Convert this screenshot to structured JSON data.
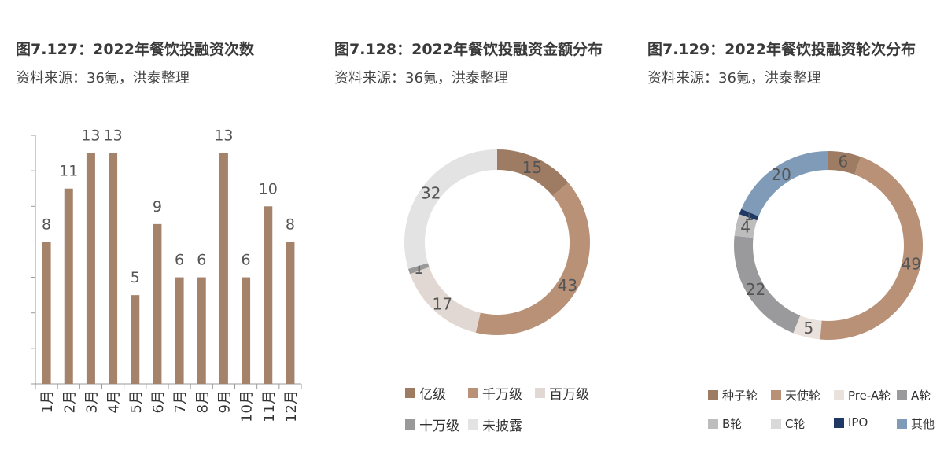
{
  "panels": [
    {
      "title": "图7.127：2022年餐饮投融资次数",
      "source": "资料来源：36氪，洪泰整理"
    },
    {
      "title": "图7.128：2022年餐饮投融资金额分布",
      "source": "资料来源：36氪，洪泰整理"
    },
    {
      "title": "图7.129：2022年餐饮投融资轮次分布",
      "source": "资料来源：36氪，洪泰整理"
    }
  ],
  "chart_data": [
    {
      "type": "bar",
      "title": "图7.127：2022年餐饮投融资次数",
      "categories": [
        "1月",
        "2月",
        "3月",
        "4月",
        "5月",
        "6月",
        "7月",
        "8月",
        "9月",
        "10月",
        "11月",
        "12月"
      ],
      "values": [
        8,
        11,
        13,
        13,
        5,
        9,
        6,
        6,
        13,
        6,
        10,
        8
      ],
      "ylim": [
        0,
        14
      ],
      "color": "#a5826a",
      "grid": false
    },
    {
      "type": "pie",
      "variant": "donut",
      "title": "图7.128：2022年餐饮投融资金额分布",
      "categories": [
        "亿级",
        "千万级",
        "百万级",
        "十万级",
        "未披露"
      ],
      "values": [
        15,
        43,
        17,
        1,
        32
      ],
      "colors": [
        "#9e7c63",
        "#b99177",
        "#e2d8d3",
        "#999999",
        "#e3e3e3"
      ],
      "legend_position": "bottom"
    },
    {
      "type": "pie",
      "variant": "donut",
      "title": "图7.129：2022年餐饮投融资轮次分布",
      "categories": [
        "种子轮",
        "天使轮",
        "Pre-A轮",
        "A轮",
        "B轮",
        "C轮",
        "IPO",
        "其他"
      ],
      "values": [
        6,
        49,
        5,
        22,
        4,
        0,
        1,
        20
      ],
      "colors": [
        "#9e7c63",
        "#b99177",
        "#e9e1dc",
        "#9a9a9c",
        "#bdbdbd",
        "#d9d9d9",
        "#1f3864",
        "#7f9bb8"
      ],
      "legend_position": "bottom"
    }
  ]
}
